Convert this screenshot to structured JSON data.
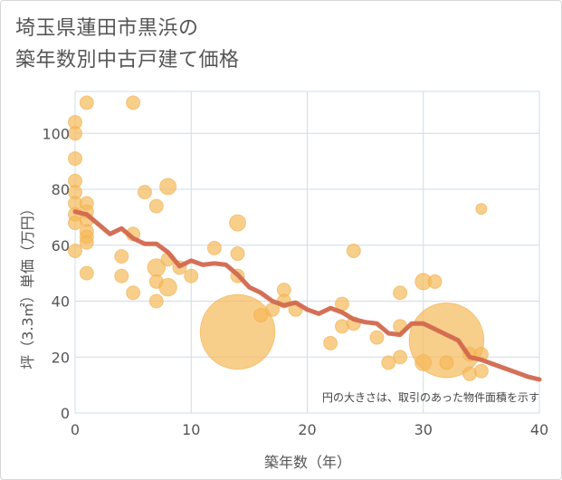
{
  "chart_data": {
    "type": "scatter",
    "title_lines": [
      "埼玉県蓮田市黒浜の",
      "築年数別中古戸建て価格"
    ],
    "xlabel": "築年数（年）",
    "ylabel": "坪（3.3㎡）単価（万円）",
    "xlim": [
      0,
      40
    ],
    "ylim": [
      0,
      115
    ],
    "x_ticks": [
      0,
      10,
      20,
      30,
      40
    ],
    "y_ticks": [
      0,
      20,
      40,
      60,
      80,
      100
    ],
    "grid": true,
    "note": "円の大きさは、取引のあった物件面積を示す",
    "colors": {
      "bubble": "#f5b95a",
      "trend": "#d2684e",
      "grid": "#d0dce6"
    },
    "bubbles": [
      {
        "x": 0,
        "y": 104,
        "s": 1
      },
      {
        "x": 0,
        "y": 100,
        "s": 1
      },
      {
        "x": 0,
        "y": 91,
        "s": 1
      },
      {
        "x": 0,
        "y": 83,
        "s": 1
      },
      {
        "x": 0,
        "y": 79,
        "s": 1
      },
      {
        "x": 0,
        "y": 75,
        "s": 1
      },
      {
        "x": 0,
        "y": 71,
        "s": 1
      },
      {
        "x": 0,
        "y": 68,
        "s": 1
      },
      {
        "x": 0,
        "y": 58,
        "s": 1
      },
      {
        "x": 1,
        "y": 111,
        "s": 1
      },
      {
        "x": 1,
        "y": 75,
        "s": 1
      },
      {
        "x": 1,
        "y": 72,
        "s": 1
      },
      {
        "x": 1,
        "y": 69,
        "s": 1
      },
      {
        "x": 1,
        "y": 65,
        "s": 1
      },
      {
        "x": 1,
        "y": 63,
        "s": 1
      },
      {
        "x": 1,
        "y": 61,
        "s": 1
      },
      {
        "x": 1,
        "y": 50,
        "s": 1
      },
      {
        "x": 4,
        "y": 56,
        "s": 1
      },
      {
        "x": 4,
        "y": 49,
        "s": 1
      },
      {
        "x": 5,
        "y": 111,
        "s": 1
      },
      {
        "x": 5,
        "y": 64,
        "s": 1
      },
      {
        "x": 5,
        "y": 43,
        "s": 1
      },
      {
        "x": 6,
        "y": 79,
        "s": 1
      },
      {
        "x": 7,
        "y": 74,
        "s": 1
      },
      {
        "x": 7,
        "y": 52,
        "s": 1.3
      },
      {
        "x": 7,
        "y": 47,
        "s": 1
      },
      {
        "x": 7,
        "y": 40,
        "s": 1
      },
      {
        "x": 8,
        "y": 81,
        "s": 1.2
      },
      {
        "x": 8,
        "y": 55,
        "s": 1
      },
      {
        "x": 8,
        "y": 45,
        "s": 1.3
      },
      {
        "x": 9,
        "y": 52,
        "s": 1
      },
      {
        "x": 10,
        "y": 49,
        "s": 1
      },
      {
        "x": 12,
        "y": 59,
        "s": 1
      },
      {
        "x": 14,
        "y": 68,
        "s": 1.2
      },
      {
        "x": 14,
        "y": 57,
        "s": 1
      },
      {
        "x": 14,
        "y": 49,
        "s": 1
      },
      {
        "x": 14,
        "y": 29,
        "s": 5.5
      },
      {
        "x": 16,
        "y": 35,
        "s": 1
      },
      {
        "x": 17,
        "y": 37,
        "s": 1
      },
      {
        "x": 18,
        "y": 44,
        "s": 1
      },
      {
        "x": 18,
        "y": 40,
        "s": 1
      },
      {
        "x": 19,
        "y": 37,
        "s": 1
      },
      {
        "x": 22,
        "y": 25,
        "s": 1
      },
      {
        "x": 23,
        "y": 39,
        "s": 1
      },
      {
        "x": 23,
        "y": 31,
        "s": 1
      },
      {
        "x": 24,
        "y": 58,
        "s": 1
      },
      {
        "x": 24,
        "y": 32,
        "s": 1
      },
      {
        "x": 26,
        "y": 27,
        "s": 1
      },
      {
        "x": 27,
        "y": 18,
        "s": 1
      },
      {
        "x": 28,
        "y": 43,
        "s": 1
      },
      {
        "x": 28,
        "y": 31,
        "s": 1
      },
      {
        "x": 28,
        "y": 20,
        "s": 1
      },
      {
        "x": 30,
        "y": 47,
        "s": 1.2
      },
      {
        "x": 30,
        "y": 18,
        "s": 1.2
      },
      {
        "x": 31,
        "y": 47,
        "s": 1
      },
      {
        "x": 32,
        "y": 26,
        "s": 5.5
      },
      {
        "x": 32,
        "y": 18,
        "s": 1
      },
      {
        "x": 34,
        "y": 21,
        "s": 1
      },
      {
        "x": 34,
        "y": 14,
        "s": 1
      },
      {
        "x": 35,
        "y": 73,
        "s": 0.8
      },
      {
        "x": 35,
        "y": 21,
        "s": 1
      },
      {
        "x": 35,
        "y": 15,
        "s": 1
      }
    ],
    "trend": {
      "x": [
        0,
        1,
        2,
        3,
        4,
        5,
        6,
        7,
        8,
        9,
        10,
        11,
        12,
        13,
        14,
        15,
        16,
        17,
        18,
        19,
        20,
        21,
        22,
        23,
        24,
        25,
        26,
        27,
        28,
        29,
        30,
        31,
        32,
        33,
        34,
        35,
        36,
        37,
        38,
        39,
        40
      ],
      "y": [
        72,
        71,
        67.5,
        64,
        66,
        62.5,
        60.5,
        60.5,
        57.5,
        52.5,
        54.5,
        53,
        53.5,
        53,
        49.5,
        45,
        43,
        40,
        38.5,
        39.5,
        37,
        35.5,
        37.5,
        36,
        33.5,
        32.5,
        32,
        28.5,
        28,
        32,
        32,
        30,
        28,
        26,
        20,
        19,
        17.5,
        16,
        14.5,
        13,
        12
      ]
    }
  }
}
